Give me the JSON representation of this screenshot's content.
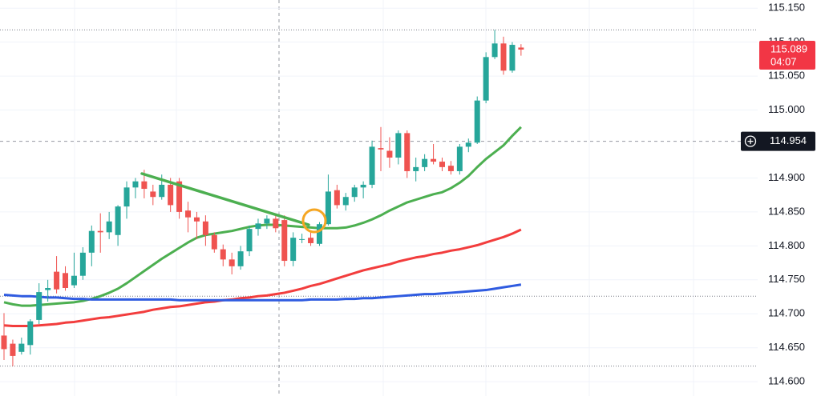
{
  "chart_data": {
    "type": "candlestick",
    "categories": [
      null,
      null,
      null,
      null,
      null,
      null,
      null,
      null,
      null,
      null,
      null,
      null,
      null,
      null,
      null,
      null,
      null,
      null,
      null,
      null,
      null,
      null,
      null,
      null,
      null,
      null,
      null,
      null,
      null,
      null,
      null,
      null,
      null,
      null,
      null,
      null,
      null,
      null,
      null,
      null,
      null,
      null,
      null,
      null,
      null,
      null,
      null,
      null,
      null,
      null,
      null,
      null,
      null,
      null,
      null,
      null,
      null,
      null,
      null,
      null
    ],
    "open": [
      114.668,
      114.656,
      114.644,
      114.654,
      114.691,
      114.735,
      114.762,
      114.76,
      114.742,
      114.756,
      114.79,
      114.822,
      114.82,
      114.816,
      114.858,
      114.886,
      114.895,
      114.88,
      114.872,
      114.89,
      114.895,
      114.852,
      114.842,
      114.836,
      114.816,
      114.795,
      114.78,
      114.77,
      114.792,
      114.825,
      114.833,
      114.84,
      114.838,
      114.778,
      114.81,
      114.812,
      114.803,
      114.832,
      114.882,
      114.86,
      114.872,
      114.886,
      114.89,
      114.944,
      114.94,
      114.93,
      114.966,
      114.91,
      114.916,
      114.928,
      114.924,
      114.918,
      114.91,
      114.946,
      114.952,
      115.014,
      115.078,
      115.098,
      115.058,
      115.092
    ],
    "high": [
      114.701,
      114.662,
      114.665,
      114.692,
      114.745,
      114.75,
      114.785,
      114.77,
      114.79,
      114.798,
      114.83,
      114.848,
      114.85,
      114.86,
      114.895,
      114.9,
      114.912,
      114.89,
      114.905,
      114.9,
      114.9,
      114.865,
      114.85,
      114.845,
      114.82,
      114.802,
      114.79,
      114.8,
      114.83,
      114.84,
      114.845,
      114.848,
      114.845,
      114.82,
      114.818,
      114.82,
      114.835,
      114.905,
      114.89,
      114.878,
      114.89,
      114.895,
      114.955,
      114.975,
      114.96,
      114.97,
      114.97,
      114.93,
      114.935,
      114.95,
      114.93,
      114.925,
      114.95,
      114.958,
      115.02,
      115.085,
      115.118,
      115.108,
      115.1,
      115.097
    ],
    "low": [
      114.632,
      114.623,
      114.64,
      114.64,
      114.685,
      114.718,
      114.73,
      114.734,
      114.738,
      114.75,
      114.77,
      114.79,
      114.81,
      114.8,
      114.84,
      114.87,
      114.87,
      114.86,
      114.868,
      114.85,
      114.84,
      114.82,
      114.81,
      114.8,
      114.79,
      114.77,
      114.758,
      114.765,
      114.785,
      114.815,
      114.825,
      114.82,
      114.77,
      114.77,
      114.804,
      114.8,
      114.8,
      114.83,
      114.855,
      114.852,
      114.865,
      114.87,
      114.885,
      114.91,
      114.915,
      114.92,
      114.9,
      114.895,
      114.91,
      114.92,
      114.91,
      114.905,
      114.905,
      114.938,
      114.95,
      115.01,
      115.075,
      115.052,
      115.055,
      115.08
    ],
    "close": [
      114.648,
      114.638,
      114.656,
      114.689,
      114.732,
      114.738,
      114.736,
      114.738,
      114.756,
      114.79,
      114.822,
      114.82,
      114.836,
      114.858,
      114.886,
      114.895,
      114.884,
      114.872,
      114.89,
      114.86,
      114.85,
      114.842,
      114.836,
      114.816,
      114.795,
      114.78,
      114.77,
      114.792,
      114.825,
      114.833,
      114.84,
      114.826,
      114.778,
      114.812,
      114.81,
      114.804,
      114.832,
      114.88,
      114.86,
      114.872,
      114.886,
      114.89,
      114.946,
      114.942,
      114.93,
      114.966,
      114.91,
      114.916,
      114.928,
      114.924,
      114.916,
      114.91,
      114.946,
      114.952,
      115.014,
      115.078,
      115.098,
      115.058,
      115.096,
      115.089
    ],
    "up_color": "#26a69a",
    "down_color": "#ef5350",
    "series": [
      {
        "color": "#4caf50",
        "values": [
          114.717,
          114.714,
          114.712,
          114.712,
          114.713,
          114.714,
          114.715,
          114.716,
          114.717,
          114.719,
          114.722,
          114.726,
          114.731,
          114.737,
          114.745,
          114.754,
          114.763,
          114.772,
          114.781,
          114.789,
          114.797,
          114.805,
          114.812,
          114.816,
          114.818,
          114.82,
          114.822,
          114.825,
          114.828,
          114.83,
          114.831,
          114.831,
          114.83,
          114.829,
          114.828,
          114.827,
          114.826,
          114.826,
          114.826,
          114.827,
          114.83,
          114.834,
          114.839,
          114.845,
          114.852,
          114.858,
          114.864,
          114.868,
          114.872,
          114.876,
          114.879,
          114.885,
          114.893,
          114.903,
          114.916,
          114.928,
          114.938,
          114.948,
          114.962,
          114.975
        ]
      },
      {
        "color": "#f23d3d",
        "values": [
          114.683,
          114.682,
          114.682,
          114.682,
          114.683,
          114.684,
          114.685,
          114.687,
          114.688,
          114.69,
          114.692,
          114.694,
          114.695,
          114.697,
          114.699,
          114.701,
          114.703,
          114.706,
          114.708,
          114.71,
          114.711,
          114.713,
          114.715,
          114.717,
          114.718,
          114.72,
          114.721,
          114.723,
          114.724,
          114.726,
          114.727,
          114.729,
          114.731,
          114.734,
          114.737,
          114.741,
          114.744,
          114.748,
          114.752,
          114.756,
          114.76,
          114.764,
          114.767,
          114.77,
          114.773,
          114.777,
          114.78,
          114.783,
          114.785,
          114.788,
          114.79,
          114.793,
          114.795,
          114.798,
          114.801,
          114.805,
          114.809,
          114.813,
          114.818,
          114.824
        ]
      },
      {
        "color": "#2f5be0",
        "values": [
          114.728,
          114.727,
          114.726,
          114.726,
          114.725,
          114.724,
          114.724,
          114.723,
          114.722,
          114.722,
          114.721,
          114.721,
          114.721,
          114.721,
          114.721,
          114.721,
          114.721,
          114.721,
          114.721,
          114.721,
          114.72,
          114.72,
          114.72,
          114.72,
          114.72,
          114.72,
          114.72,
          114.72,
          114.72,
          114.72,
          114.72,
          114.72,
          114.72,
          114.72,
          114.72,
          114.721,
          114.721,
          114.721,
          114.721,
          114.722,
          114.722,
          114.723,
          114.723,
          114.724,
          114.725,
          114.726,
          114.727,
          114.728,
          114.729,
          114.729,
          114.73,
          114.731,
          114.732,
          114.733,
          114.734,
          114.735,
          114.737,
          114.739,
          114.741,
          114.743
        ]
      }
    ],
    "ylim": [
      114.579,
      115.162
    ],
    "yticks": [
      {
        "value": 114.6,
        "label": "114.600"
      },
      {
        "value": 114.65,
        "label": "114.650"
      },
      {
        "value": 114.7,
        "label": "114.700"
      },
      {
        "value": 114.75,
        "label": "114.750"
      },
      {
        "value": 114.8,
        "label": "114.800"
      },
      {
        "value": 114.85,
        "label": "114.850"
      },
      {
        "value": 114.9,
        "label": "114.900"
      },
      {
        "value": 115.0,
        "label": "115.000"
      },
      {
        "value": 115.05,
        "label": "115.050"
      },
      {
        "value": 115.1,
        "label": "115.100"
      },
      {
        "value": 115.15,
        "label": "115.150"
      }
    ],
    "grid": true,
    "price_lines": [
      115.118,
      114.726,
      114.623
    ],
    "crosshair": 114.954,
    "last_price": 115.089,
    "countdown": "04:07"
  }
}
